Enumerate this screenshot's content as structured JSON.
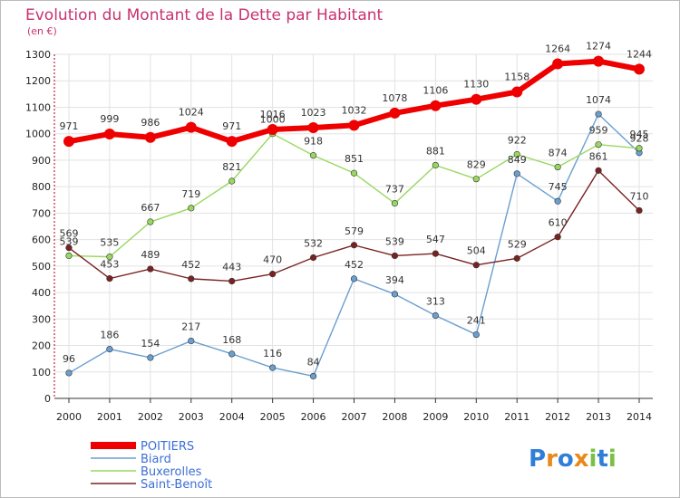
{
  "chart_data": {
    "type": "line",
    "title": "Evolution du Montant de la Dette par Habitant",
    "subtitle": "(en €)",
    "xlabel": "",
    "ylabel": "",
    "x": [
      2000,
      2001,
      2002,
      2003,
      2004,
      2005,
      2006,
      2007,
      2008,
      2009,
      2010,
      2011,
      2012,
      2013,
      2014
    ],
    "ylim": [
      0,
      1300
    ],
    "yticks": [
      0,
      100,
      200,
      300,
      400,
      500,
      600,
      700,
      800,
      900,
      1000,
      1100,
      1200,
      1300
    ],
    "grid": true,
    "legend_placement": "bottom-left",
    "series": [
      {
        "name": "POITIERS",
        "color": "#ee0000",
        "values": [
          971,
          999,
          986,
          1024,
          971,
          1016,
          1023,
          1032,
          1078,
          1106,
          1130,
          1158,
          1264,
          1274,
          1244
        ]
      },
      {
        "name": "Biard",
        "color": "#6a9fd0",
        "values": [
          96,
          186,
          154,
          217,
          168,
          116,
          84,
          452,
          394,
          313,
          241,
          849,
          745,
          1074,
          928
        ]
      },
      {
        "name": "Buxerolles",
        "color": "#99d860",
        "values": [
          539,
          535,
          667,
          719,
          821,
          1000,
          918,
          851,
          737,
          881,
          829,
          922,
          874,
          959,
          945
        ]
      },
      {
        "name": "Saint-Benoît",
        "color": "#7a2222",
        "values": [
          569,
          453,
          489,
          452,
          443,
          470,
          532,
          579,
          539,
          547,
          504,
          529,
          610,
          861,
          710
        ]
      }
    ]
  },
  "brand": {
    "letters": [
      "P",
      "r",
      "o",
      "x",
      "i",
      "t",
      "i"
    ],
    "colors": [
      "#2f7fd8",
      "#e8891a",
      "#2f7fd8",
      "#e8891a",
      "#7ac043",
      "#2f7fd8",
      "#7ac043"
    ]
  }
}
